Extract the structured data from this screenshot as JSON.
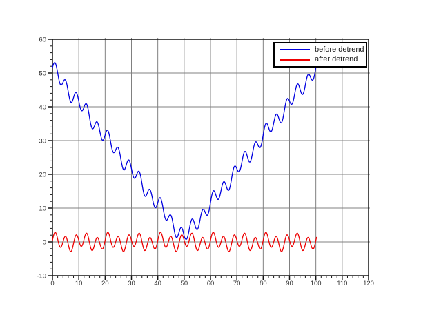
{
  "figure": {
    "background": "#ffffff"
  },
  "chart_data": {
    "type": "line",
    "title": "",
    "xlabel": "",
    "ylabel": "",
    "xlim": [
      0,
      120
    ],
    "ylim": [
      -10,
      60
    ],
    "grid": true,
    "x_axis": {
      "ticks": [
        0,
        10,
        20,
        30,
        40,
        50,
        60,
        70,
        80,
        90,
        100,
        110,
        120
      ],
      "labels": [
        "0",
        "10",
        "20",
        "30",
        "40",
        "50",
        "60",
        "70",
        "80",
        "90",
        "100",
        "110",
        "120"
      ],
      "minor_tick_step": 2
    },
    "y_axis": {
      "ticks": [
        -10,
        0,
        10,
        20,
        30,
        40,
        50,
        60
      ],
      "labels": [
        "-10",
        "0",
        "10",
        "20",
        "30",
        "40",
        "50",
        "60"
      ],
      "minor_tick_step": 2
    },
    "colors": {
      "before_detrend": "#0000e0",
      "after_detrend": "#ee0000",
      "grid": "#808080",
      "frame": "#141414",
      "tick_text": "#303030"
    },
    "legend": {
      "position": "top-right",
      "border_color": "#000000",
      "entries": [
        {
          "label": "before detrend",
          "color": "#0000e0"
        },
        {
          "label": "after detrend",
          "color": "#ee0000"
        }
      ]
    },
    "series": [
      {
        "name": "before detrend",
        "color": "#0000e0",
        "x_start": 0,
        "x_end": 100.25,
        "x_step": 0.25,
        "trend": {
          "type": "abs",
          "center": 50,
          "slope": 1,
          "offset": 1.2
        },
        "oscillation": [
          {
            "amp": 2.1,
            "period": 4,
            "phase": 0
          },
          {
            "amp": 0.8,
            "period": 10,
            "phase": 0.6
          }
        ],
        "description": "V-shaped trend |x-50|+1.2 plus quasi-periodic oscillation; ~52 at x=0, dips to ~0 near x=50, back to ~52 at x=100"
      },
      {
        "name": "after detrend",
        "color": "#ee0000",
        "x_start": 0,
        "x_end": 100.25,
        "x_step": 0.25,
        "trend": null,
        "oscillation": [
          {
            "amp": 2.1,
            "period": 4,
            "phase": 0
          },
          {
            "amp": 0.8,
            "period": 10,
            "phase": 0.6
          }
        ],
        "description": "Detrended residual oscillating around 0 with amplitude about +/-3"
      }
    ]
  }
}
